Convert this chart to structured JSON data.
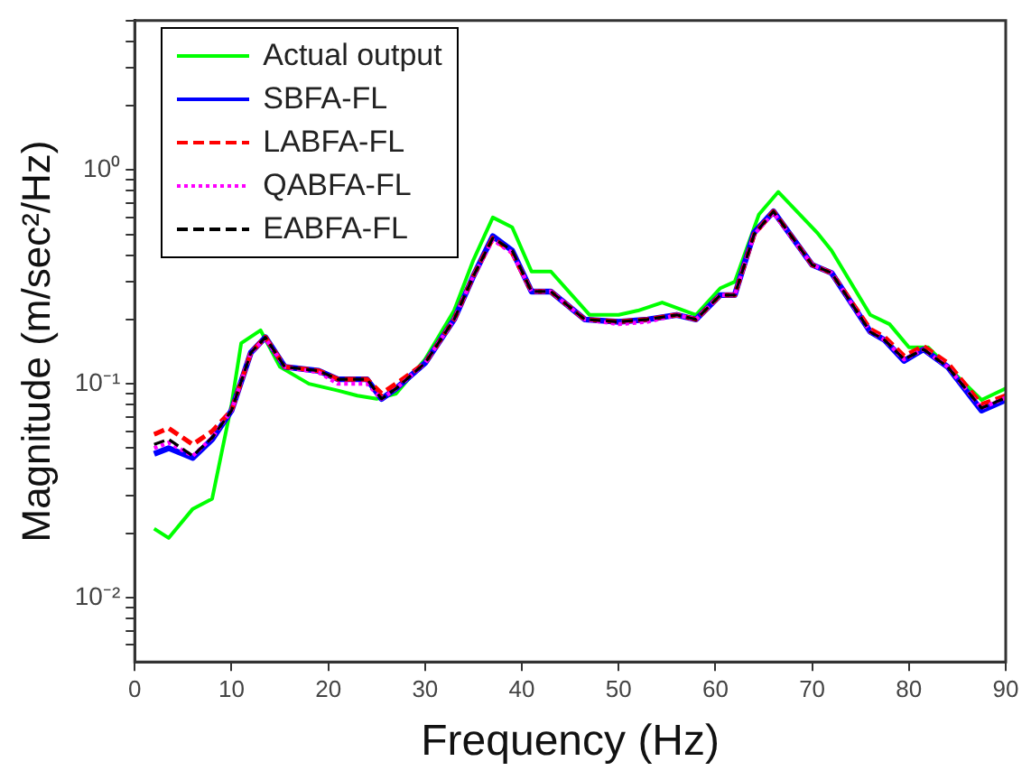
{
  "chart_data": {
    "type": "line",
    "xlabel": "Frequency (Hz)",
    "ylabel": "Magnitude (m/sec²/Hz)",
    "xlim": [
      0,
      90
    ],
    "xticks": [
      0,
      10,
      20,
      30,
      40,
      50,
      60,
      70,
      80,
      90
    ],
    "ylim": [
      0.005,
      5
    ],
    "log": "y",
    "yticks": [
      {
        "value": 0.006,
        "label": null
      },
      {
        "value": 0.007,
        "label": null
      },
      {
        "value": 0.008,
        "label": null
      },
      {
        "value": 0.009,
        "label": null
      },
      {
        "value": 0.01,
        "label": "10⁻²"
      },
      {
        "value": 0.02,
        "label": null
      },
      {
        "value": 0.03,
        "label": null
      },
      {
        "value": 0.04,
        "label": null
      },
      {
        "value": 0.05,
        "label": null
      },
      {
        "value": 0.06,
        "label": null
      },
      {
        "value": 0.07,
        "label": null
      },
      {
        "value": 0.08,
        "label": null
      },
      {
        "value": 0.09,
        "label": null
      },
      {
        "value": 0.1,
        "label": "10⁻¹"
      },
      {
        "value": 0.2,
        "label": null
      },
      {
        "value": 0.3,
        "label": null
      },
      {
        "value": 0.4,
        "label": null
      },
      {
        "value": 0.5,
        "label": null
      },
      {
        "value": 0.6,
        "label": null
      },
      {
        "value": 0.7,
        "label": null
      },
      {
        "value": 0.8,
        "label": null
      },
      {
        "value": 0.9,
        "label": null
      },
      {
        "value": 1,
        "label": "10⁰"
      },
      {
        "value": 2,
        "label": null
      },
      {
        "value": 3,
        "label": null
      },
      {
        "value": 4,
        "label": null
      },
      {
        "value": 5,
        "label": null
      }
    ],
    "grid": false,
    "legend": "top left",
    "marker": "none",
    "series": [
      {
        "name": "Actual output",
        "color": "#00ff00",
        "line_style": "solid",
        "x": [
          2,
          3.5,
          6,
          8,
          10,
          11,
          13,
          15,
          18,
          21,
          23,
          25,
          27,
          30,
          33,
          35,
          37,
          39,
          41,
          43,
          47,
          50,
          52,
          54.5,
          58,
          60.5,
          62,
          64.5,
          66.5,
          70.5,
          72,
          76,
          78,
          80,
          82,
          84,
          87.5,
          90
        ],
        "values": [
          0.021,
          0.019,
          0.026,
          0.029,
          0.08,
          0.155,
          0.178,
          0.12,
          0.1,
          0.093,
          0.088,
          0.085,
          0.09,
          0.13,
          0.22,
          0.38,
          0.6,
          0.54,
          0.335,
          0.335,
          0.21,
          0.21,
          0.22,
          0.24,
          0.21,
          0.28,
          0.3,
          0.62,
          0.79,
          0.51,
          0.42,
          0.21,
          0.19,
          0.148,
          0.148,
          0.12,
          0.084,
          0.095
        ]
      },
      {
        "name": "SBFA-FL",
        "color": "#0000ff",
        "line_style": "solid",
        "x": [
          2,
          3.5,
          6,
          8,
          10,
          12,
          13.5,
          15.5,
          19,
          21,
          24,
          25.5,
          27,
          30,
          33,
          35,
          37,
          39,
          41,
          43,
          46.5,
          50,
          53,
          56,
          58,
          60.5,
          62,
          64,
          66,
          70,
          72,
          76,
          77.5,
          79.5,
          81.5,
          84,
          87.5,
          90
        ],
        "values": [
          0.047,
          0.05,
          0.045,
          0.055,
          0.075,
          0.14,
          0.165,
          0.12,
          0.115,
          0.105,
          0.105,
          0.085,
          0.095,
          0.125,
          0.2,
          0.32,
          0.49,
          0.42,
          0.27,
          0.27,
          0.2,
          0.195,
          0.2,
          0.21,
          0.2,
          0.26,
          0.26,
          0.51,
          0.64,
          0.36,
          0.33,
          0.175,
          0.16,
          0.128,
          0.145,
          0.12,
          0.075,
          0.084
        ]
      },
      {
        "name": "LABFA-FL",
        "color": "#ff0000",
        "line_style": "dashed",
        "x": [
          2,
          3.5,
          6,
          8,
          10,
          12,
          13.5,
          15.5,
          19,
          21,
          24,
          25.5,
          27,
          30,
          33,
          35,
          37,
          39,
          41,
          43,
          46.5,
          50,
          53,
          56,
          58,
          60.5,
          62,
          64,
          66,
          70,
          72,
          76,
          77.5,
          79.5,
          81.5,
          84,
          87.5,
          90
        ],
        "values": [
          0.058,
          0.062,
          0.052,
          0.06,
          0.075,
          0.14,
          0.165,
          0.12,
          0.115,
          0.105,
          0.105,
          0.09,
          0.1,
          0.125,
          0.2,
          0.32,
          0.48,
          0.41,
          0.27,
          0.27,
          0.2,
          0.195,
          0.2,
          0.21,
          0.2,
          0.26,
          0.26,
          0.5,
          0.64,
          0.36,
          0.33,
          0.18,
          0.165,
          0.135,
          0.15,
          0.125,
          0.08,
          0.088
        ]
      },
      {
        "name": "QABFA-FL",
        "color": "#ff00ff",
        "line_style": "dotted",
        "x": [
          2,
          3.5,
          6,
          8,
          10,
          12,
          13.5,
          15.5,
          19,
          21,
          24,
          25.5,
          27,
          30,
          33,
          35,
          37,
          39,
          41,
          43,
          46.5,
          50,
          53,
          56,
          58,
          60.5,
          62,
          64,
          66,
          70,
          72,
          76,
          77.5,
          79.5,
          81.5,
          84,
          87.5,
          90
        ],
        "values": [
          0.05,
          0.053,
          0.046,
          0.056,
          0.075,
          0.14,
          0.163,
          0.12,
          0.113,
          0.1,
          0.1,
          0.085,
          0.095,
          0.125,
          0.2,
          0.32,
          0.47,
          0.41,
          0.27,
          0.27,
          0.2,
          0.19,
          0.195,
          0.21,
          0.2,
          0.26,
          0.26,
          0.5,
          0.63,
          0.36,
          0.33,
          0.175,
          0.16,
          0.13,
          0.145,
          0.12,
          0.077,
          0.086
        ]
      },
      {
        "name": "EABFA-FL",
        "color": "#000000",
        "line_style": "dashed",
        "x": [
          2,
          3.5,
          6,
          8,
          10,
          12,
          13.5,
          15.5,
          19,
          21,
          24,
          25.5,
          27,
          30,
          33,
          35,
          37,
          39,
          41,
          43,
          46.5,
          50,
          53,
          56,
          58,
          60.5,
          62,
          64,
          66,
          70,
          72,
          76,
          77.5,
          79.5,
          81.5,
          84,
          87.5,
          90
        ],
        "values": [
          0.052,
          0.055,
          0.046,
          0.056,
          0.075,
          0.14,
          0.165,
          0.12,
          0.115,
          0.105,
          0.105,
          0.085,
          0.095,
          0.125,
          0.2,
          0.32,
          0.48,
          0.42,
          0.27,
          0.27,
          0.2,
          0.195,
          0.2,
          0.21,
          0.2,
          0.26,
          0.26,
          0.5,
          0.64,
          0.36,
          0.33,
          0.175,
          0.16,
          0.13,
          0.145,
          0.12,
          0.077,
          0.086
        ]
      }
    ]
  }
}
